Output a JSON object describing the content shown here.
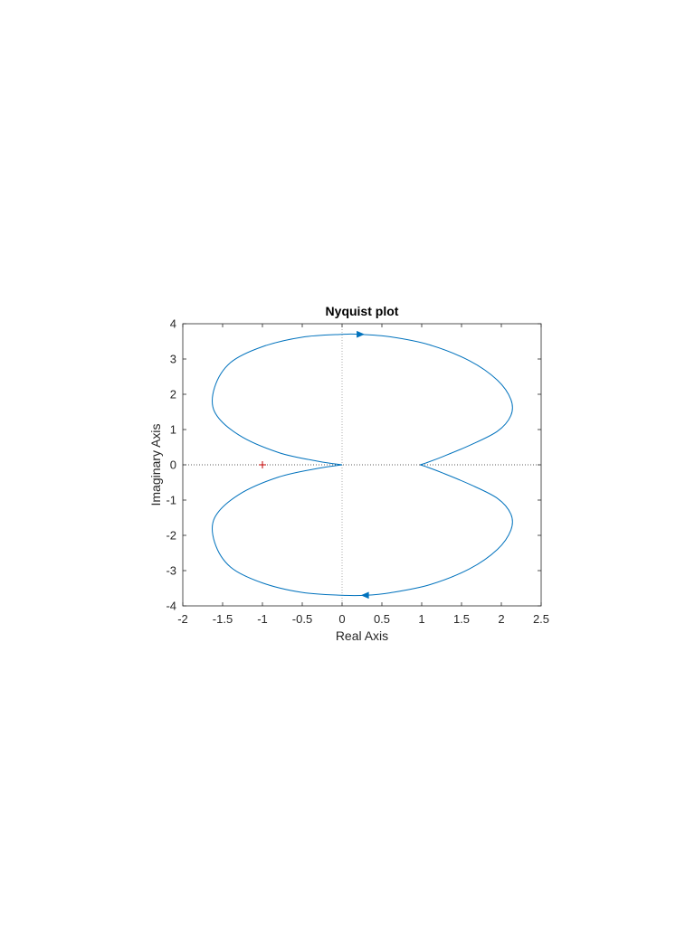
{
  "chart_data": {
    "type": "line",
    "title": "Nyquist plot",
    "xlabel": "Real Axis",
    "ylabel": "Imaginary Axis",
    "xlim": [
      -2,
      2.5
    ],
    "ylim": [
      -4,
      4
    ],
    "xticks": [
      -2,
      -1.5,
      -1,
      -0.5,
      0,
      0.5,
      1,
      1.5,
      2,
      2.5
    ],
    "yticks": [
      -4,
      -3,
      -2,
      -1,
      0,
      1,
      2,
      3,
      4
    ],
    "grid": false,
    "legend": "none",
    "critical_point": {
      "x": -1,
      "y": 0,
      "marker": "+"
    },
    "series": [
      {
        "color": "#0072bd",
        "x": [
          0,
          -0.3,
          -0.8,
          -1.3,
          -1.6,
          -1.6,
          -1.4,
          -1.0,
          -0.5,
          0,
          0.2,
          0.6,
          1.1,
          1.6,
          1.95,
          2.12,
          2.12,
          1.95,
          1.6,
          1.25,
          1.05,
          0.98
        ],
        "y": [
          0,
          0.1,
          0.35,
          0.85,
          1.5,
          2.2,
          2.9,
          3.35,
          3.62,
          3.7,
          3.7,
          3.63,
          3.4,
          2.95,
          2.4,
          1.85,
          1.4,
          0.95,
          0.55,
          0.22,
          0.05,
          0
        ],
        "arrow_at": {
          "x": 0.22,
          "y": 3.7,
          "direction": "right"
        }
      },
      {
        "color": "#0072bd",
        "x": [
          0,
          -0.3,
          -0.8,
          -1.3,
          -1.6,
          -1.6,
          -1.4,
          -1.0,
          -0.5,
          0,
          0.3,
          0.6,
          1.1,
          1.6,
          1.95,
          2.12,
          2.12,
          1.95,
          1.6,
          1.25,
          1.05,
          0.98
        ],
        "y": [
          0,
          -0.1,
          -0.35,
          -0.85,
          -1.5,
          -2.2,
          -2.9,
          -3.35,
          -3.62,
          -3.7,
          -3.7,
          -3.63,
          -3.4,
          -2.95,
          -2.4,
          -1.85,
          -1.4,
          -0.95,
          -0.55,
          -0.22,
          -0.05,
          0
        ],
        "arrow_at": {
          "x": 0.3,
          "y": -3.7,
          "direction": "left"
        }
      }
    ],
    "colors": {
      "axes_box": "#262626",
      "zero_lines": "#262626",
      "critical_point": "#c00000"
    }
  }
}
